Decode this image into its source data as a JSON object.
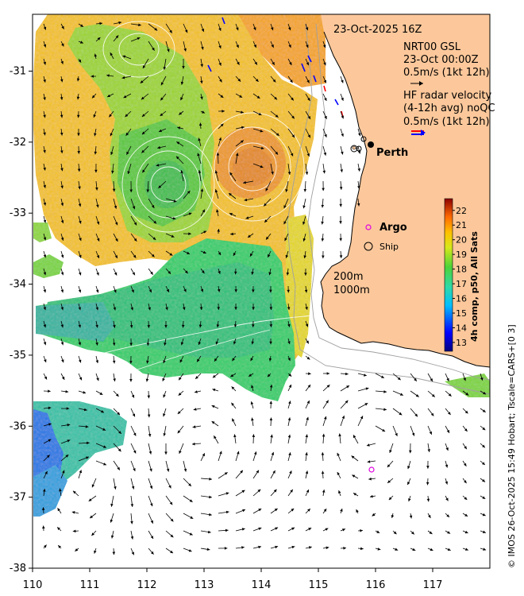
{
  "map": {
    "lon_range": [
      110,
      118
    ],
    "lat_range": [
      -38,
      -30.2
    ],
    "x_ticks": [
      "110",
      "111",
      "112",
      "113",
      "114",
      "115",
      "116",
      "117"
    ],
    "y_ticks": [
      "-31",
      "-32",
      "-33",
      "-34",
      "-35",
      "-36",
      "-37",
      "-38"
    ],
    "colors": {
      "land": "#fcc89b",
      "arrow": "#000000",
      "radar_red": "#ff0000",
      "radar_blue": "#0000ff",
      "argo": "#e000e0"
    }
  },
  "header": {
    "datetime": "23-Oct-2025 16Z",
    "model_name": "NRT00 GSL",
    "model_time": "23-Oct 00:00Z",
    "model_scale": "0.5m/s (1kt 12h)",
    "radar_line1": "HF radar velocity",
    "radar_line2": "(4-12h avg) noQC",
    "radar_scale": "0.5m/s (1kt 12h)"
  },
  "places": {
    "perth": "Perth",
    "argo": "Argo",
    "ship": "Ship"
  },
  "isobaths": {
    "shallow": "200m",
    "deep": "1000m"
  },
  "colorbar": {
    "title": "4h comp, p50, All Sats",
    "ticks": [
      "22",
      "21",
      "20",
      "19",
      "18",
      "17",
      "16",
      "15",
      "14",
      "13"
    ],
    "range": [
      12.4,
      22.8
    ]
  },
  "credit": "© IMOS 26-Oct-2025 15:49 Hobart; Tscale=CARS+[0 3]"
}
